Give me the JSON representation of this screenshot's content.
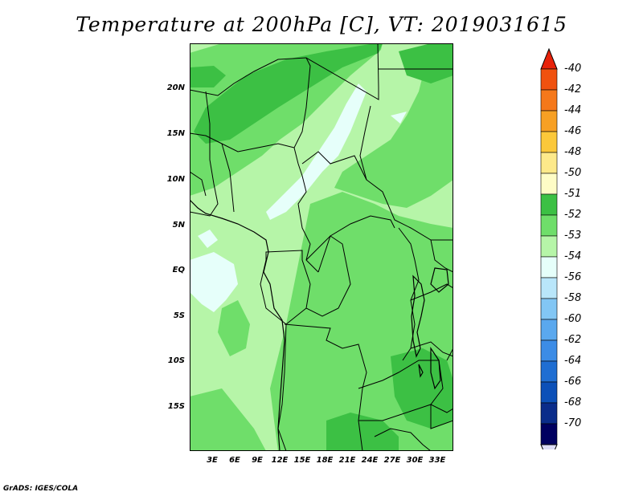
{
  "title": "Temperature at 200hPa [C], VT: 2019031615",
  "credit": "GrADS: IGES/COLA",
  "map": {
    "lat_labels": [
      "20N",
      "15N",
      "10N",
      "5N",
      "EQ",
      "5S",
      "10S",
      "15S"
    ],
    "lon_labels": [
      "3E",
      "6E",
      "9E",
      "12E",
      "15E",
      "18E",
      "21E",
      "24E",
      "27E",
      "30E",
      "33E"
    ]
  },
  "colorbar": {
    "labels": [
      "-40",
      "-42",
      "-44",
      "-46",
      "-48",
      "-50",
      "-51",
      "-52",
      "-53",
      "-54",
      "-56",
      "-58",
      "-60",
      "-62",
      "-64",
      "-66",
      "-68",
      "-70"
    ],
    "colors": [
      "#e8220a",
      "#f0510f",
      "#f5781a",
      "#f7a024",
      "#fbc83a",
      "#fde98a",
      "#fefcc6",
      "#3cc044",
      "#6fde6a",
      "#b6f5a8",
      "#e6fffa",
      "#b9e6fa",
      "#82c6f4",
      "#5aa8ee",
      "#3c8ce6",
      "#1f6ed2",
      "#0c50b8",
      "#0a2c8a",
      "#000060",
      "#dcdcf6"
    ]
  }
}
